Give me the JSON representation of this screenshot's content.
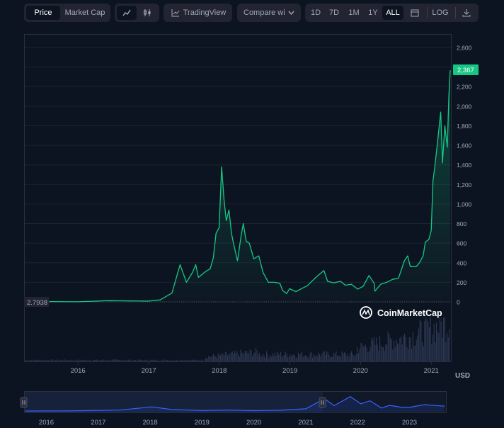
{
  "toolbar": {
    "price_label": "Price",
    "market_cap_label": "Market Cap",
    "line_icon": "line-chart-icon",
    "candle_icon": "candlestick-icon",
    "tradingview_label": "TradingView",
    "compare_label": "Compare wi",
    "ranges": [
      "1D",
      "7D",
      "1M",
      "1Y",
      "ALL"
    ],
    "active_range": "ALL",
    "log_label": "LOG",
    "calendar_icon": "calendar-icon",
    "download_icon": "download-icon"
  },
  "chart_data": {
    "type": "area",
    "y_ticks": [
      "2,600",
      "2,400",
      "2,200",
      "2,000",
      "1,800",
      "1,600",
      "1,400",
      "1,200",
      "1,000",
      "800",
      "600",
      "400",
      "200",
      "0"
    ],
    "x_ticks": [
      "2016",
      "2017",
      "2018",
      "2019",
      "2020",
      "2021"
    ],
    "y_unit": "USD",
    "ylim": [
      0,
      2600
    ],
    "current_price_label": "2,367",
    "start_price_label": "2.7938",
    "watermark": "CoinMarketCap",
    "x": [
      "2015-08-07",
      "2016-01-01",
      "2016-06-01",
      "2017-01-01",
      "2017-03-01",
      "2017-05-01",
      "2017-06-12",
      "2017-07-15",
      "2017-08-15",
      "2017-09-01",
      "2017-09-15",
      "2017-10-15",
      "2017-11-15",
      "2017-12-01",
      "2017-12-15",
      "2017-12-31",
      "2018-01-13",
      "2018-01-25",
      "2018-02-06",
      "2018-02-20",
      "2018-03-05",
      "2018-03-15",
      "2018-04-05",
      "2018-04-24",
      "2018-05-05",
      "2018-05-20",
      "2018-06-05",
      "2018-06-28",
      "2018-07-24",
      "2018-08-15",
      "2018-09-12",
      "2018-10-15",
      "2018-11-10",
      "2018-11-25",
      "2018-12-15",
      "2018-12-30",
      "2019-02-01",
      "2019-03-01",
      "2019-04-01",
      "2019-05-15",
      "2019-06-26",
      "2019-07-15",
      "2019-08-15",
      "2019-09-20",
      "2019-10-15",
      "2019-11-15",
      "2019-12-18",
      "2020-01-15",
      "2020-02-14",
      "2020-03-12",
      "2020-03-16",
      "2020-04-15",
      "2020-05-15",
      "2020-06-15",
      "2020-07-15",
      "2020-08-15",
      "2020-09-01",
      "2020-09-15",
      "2020-10-15",
      "2020-11-01",
      "2020-11-20",
      "2020-12-01",
      "2020-12-20",
      "2021-01-01",
      "2021-01-10",
      "2021-01-20",
      "2021-02-05",
      "2021-02-19",
      "2021-02-28",
      "2021-03-12",
      "2021-03-25",
      "2021-04-02",
      "2021-04-09"
    ],
    "values": [
      2.79,
      1,
      12,
      8,
      20,
      90,
      380,
      200,
      300,
      380,
      250,
      300,
      340,
      450,
      700,
      760,
      1380,
      1050,
      830,
      940,
      700,
      600,
      420,
      680,
      800,
      620,
      600,
      440,
      470,
      300,
      200,
      200,
      190,
      115,
      85,
      135,
      105,
      135,
      165,
      250,
      320,
      210,
      195,
      210,
      170,
      180,
      130,
      160,
      270,
      190,
      110,
      180,
      200,
      230,
      240,
      420,
      470,
      360,
      360,
      400,
      470,
      610,
      640,
      730,
      1240,
      1390,
      1680,
      1940,
      1420,
      1800,
      1580,
      2100,
      2367
    ],
    "volume_bars": 360
  },
  "navigator": {
    "x_ticks": [
      "2016",
      "2017",
      "2018",
      "2019",
      "2020",
      "2021",
      "2022",
      "2023"
    ],
    "x": [
      "2015-08-07",
      "2016-06-01",
      "2017-06-01",
      "2018-01-13",
      "2018-06-01",
      "2019-01-01",
      "2019-07-01",
      "2020-01-01",
      "2020-07-01",
      "2021-01-01",
      "2021-05-12",
      "2021-07-20",
      "2021-11-10",
      "2022-01-24",
      "2022-03-30",
      "2022-06-18",
      "2022-08-13",
      "2022-11-10",
      "2023-01-01",
      "2023-04-15",
      "2023-07-01",
      "2023-09-05"
    ],
    "values": [
      2.79,
      12,
      300,
      1380,
      500,
      135,
      300,
      130,
      240,
      730,
      4100,
      1800,
      4800,
      2400,
      3400,
      1000,
      1900,
      1200,
      1200,
      2100,
      1850,
      1640
    ]
  },
  "colors": {
    "background": "#0d1421",
    "line": "#16c784",
    "grid": "#1c2331",
    "panel": "#222531",
    "axis_text": "#a1a7bb"
  }
}
